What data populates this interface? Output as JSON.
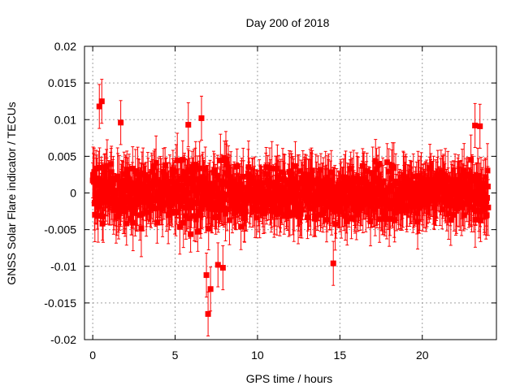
{
  "chart_data": {
    "type": "scatter",
    "title": "Day 200 of 2018",
    "xlabel": "GPS time / hours",
    "ylabel": "GNSS Solar Flare indicator / TECUs",
    "xlim": [
      -0.5,
      24.5
    ],
    "ylim": [
      -0.02,
      0.02
    ],
    "xticks": [
      0,
      5,
      10,
      15,
      20
    ],
    "xtick_labels": [
      "0",
      "5",
      "10",
      "15",
      "20"
    ],
    "yticks": [
      -0.02,
      -0.015,
      -0.01,
      -0.005,
      0,
      0.005,
      0.01,
      0.015,
      0.02
    ],
    "ytick_labels": [
      "-0.02",
      "-0.015",
      "-0.01",
      "-0.005",
      "0",
      "0.005",
      "0.01",
      "0.015",
      "0.02"
    ],
    "grid": true,
    "series": [
      {
        "name": "GNSS Solar Flare indicator",
        "color": "#ff0000",
        "marker": "square",
        "error_bars": true,
        "typical_error": 0.003,
        "note": "Dense noise around 0 with approximate range -0.009 to 0.009 TECU; notable outliers listed below",
        "x_start": 0,
        "x_end": 24,
        "notable_points": [
          {
            "x": 0.4,
            "y": 0.0118
          },
          {
            "x": 0.55,
            "y": 0.0125
          },
          {
            "x": 1.7,
            "y": 0.0096
          },
          {
            "x": 5.8,
            "y": 0.0093
          },
          {
            "x": 6.6,
            "y": 0.0102
          },
          {
            "x": 6.9,
            "y": -0.0112
          },
          {
            "x": 7.0,
            "y": -0.0165
          },
          {
            "x": 7.15,
            "y": -0.0131
          },
          {
            "x": 7.6,
            "y": -0.0098
          },
          {
            "x": 7.9,
            "y": -0.0102
          },
          {
            "x": 14.6,
            "y": -0.0096
          },
          {
            "x": 23.2,
            "y": 0.0092
          },
          {
            "x": 23.5,
            "y": 0.0091
          }
        ]
      }
    ]
  }
}
